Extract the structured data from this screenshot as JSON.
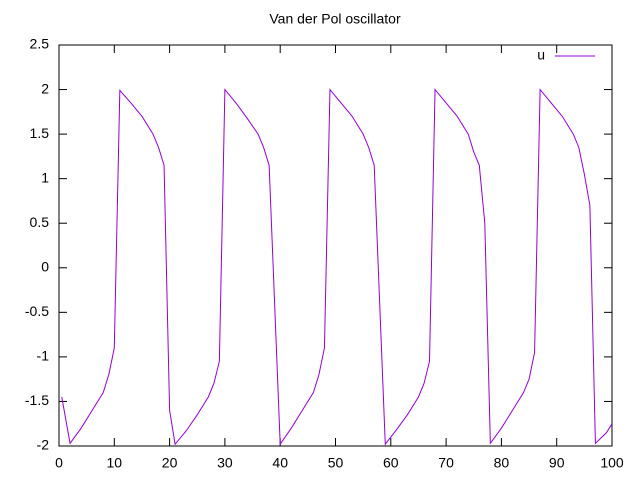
{
  "chart_data": {
    "type": "line",
    "title": "Van der Pol oscillator",
    "x": [
      0.5,
      2,
      4,
      6,
      8,
      9,
      10,
      11,
      13,
      15,
      16,
      17,
      18,
      19,
      20,
      21,
      23,
      25,
      27,
      28,
      29,
      30,
      32,
      34,
      36,
      37,
      38,
      40,
      42,
      44,
      46,
      47,
      48,
      49,
      51,
      53,
      55,
      56,
      57,
      59,
      61,
      63,
      65,
      66,
      67,
      68,
      70,
      72,
      74,
      75,
      76,
      77,
      78,
      80,
      82,
      84,
      85,
      86,
      87,
      89,
      91,
      93,
      94,
      95,
      96,
      97,
      99,
      100
    ],
    "series": [
      {
        "name": "u",
        "color": "#9400d3",
        "values": [
          -1.45,
          -1.97,
          -1.8,
          -1.6,
          -1.4,
          -1.2,
          -0.9,
          1.99,
          1.85,
          1.7,
          1.6,
          1.5,
          1.35,
          1.15,
          -1.6,
          -1.98,
          -1.83,
          -1.65,
          -1.45,
          -1.3,
          -1.05,
          2.0,
          1.85,
          1.68,
          1.5,
          1.35,
          1.15,
          -1.98,
          -1.8,
          -1.6,
          -1.4,
          -1.2,
          -0.9,
          2.0,
          1.85,
          1.7,
          1.5,
          1.35,
          1.15,
          -1.98,
          -1.82,
          -1.65,
          -1.45,
          -1.3,
          -1.05,
          2.0,
          1.85,
          1.7,
          1.5,
          1.3,
          1.15,
          0.5,
          -1.97,
          -1.8,
          -1.6,
          -1.4,
          -1.25,
          -0.95,
          2.0,
          1.85,
          1.7,
          1.5,
          1.35,
          1.05,
          0.7,
          -1.97,
          -1.85,
          -1.75
        ]
      }
    ],
    "xlim": [
      0,
      100
    ],
    "xticks": [
      0,
      10,
      20,
      30,
      40,
      50,
      60,
      70,
      80,
      90,
      100
    ],
    "ylim": [
      -2,
      2.5
    ],
    "yticks": [
      -2,
      -1.5,
      -1,
      -0.5,
      0,
      0.5,
      1,
      1.5,
      2,
      2.5
    ],
    "legend": "top-right"
  }
}
